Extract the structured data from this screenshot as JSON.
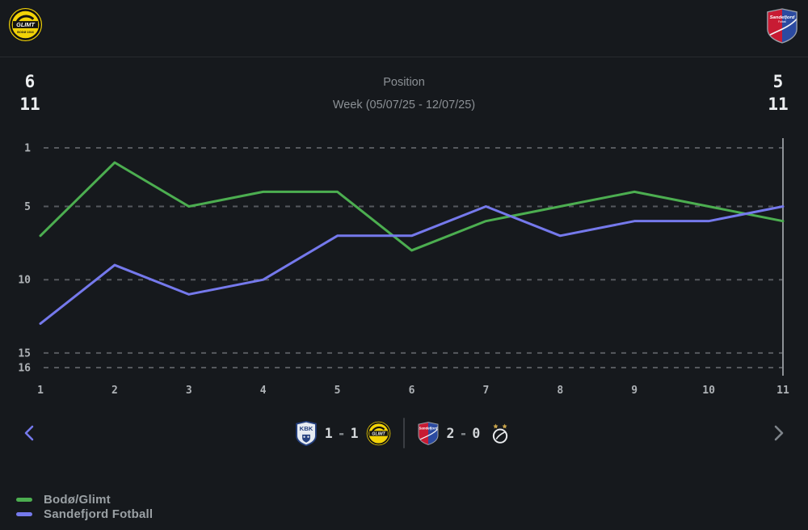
{
  "topbar": {
    "left_logo": "bodo-glimt-logo",
    "right_logo": "sandefjord-logo"
  },
  "stats": {
    "rows": [
      {
        "label": "Position",
        "left": "6",
        "right": "5"
      },
      {
        "label": "Week (05/07/25 - 12/07/25)",
        "left": "11",
        "right": "11"
      }
    ]
  },
  "chart_data": {
    "type": "line",
    "x": [
      1,
      2,
      3,
      4,
      5,
      6,
      7,
      8,
      9,
      10,
      11
    ],
    "xlabel": "Week",
    "ylabel": "Position",
    "y_ticks": [
      1,
      5,
      10,
      15,
      16
    ],
    "ylim": [
      1,
      16
    ],
    "y_inverted": true,
    "grid": "dashed-horizontal",
    "current_x_marker": 11,
    "legend_position": "bottom-left",
    "series": [
      {
        "name": "Bodø/Glimt",
        "color": "#4cae50",
        "values": [
          7,
          2,
          5,
          4,
          4,
          8,
          6,
          5,
          4,
          5,
          6
        ]
      },
      {
        "name": "Sandefjord Fotball",
        "color": "#7579ec",
        "values": [
          13,
          9,
          11,
          10,
          7,
          7,
          5,
          7,
          6,
          6,
          5
        ]
      }
    ]
  },
  "results": {
    "prev_icon": "chevron-left-icon",
    "next_icon": "chevron-right-icon",
    "matches": [
      {
        "home_icon": "kbk-logo",
        "home_score": "1",
        "separator": "-",
        "away_score": "1",
        "away_icon": "bodo-glimt-logo"
      },
      {
        "home_icon": "sandefjord-logo",
        "home_score": "2",
        "separator": "-",
        "away_score": "0",
        "away_icon": "rosenborg-logo"
      }
    ]
  },
  "legend": [
    {
      "label": "Bodø/Glimt",
      "color": "#4cae50"
    },
    {
      "label": "Sandefjord Fotball",
      "color": "#7579ec"
    }
  ],
  "colors": {
    "background": "#16191d",
    "grid": "#56595e",
    "axis_text": "#aeb2b6",
    "marker_line": "#8d9196",
    "accent_nav": "#7579ec",
    "nav_disabled": "#7e848a"
  }
}
